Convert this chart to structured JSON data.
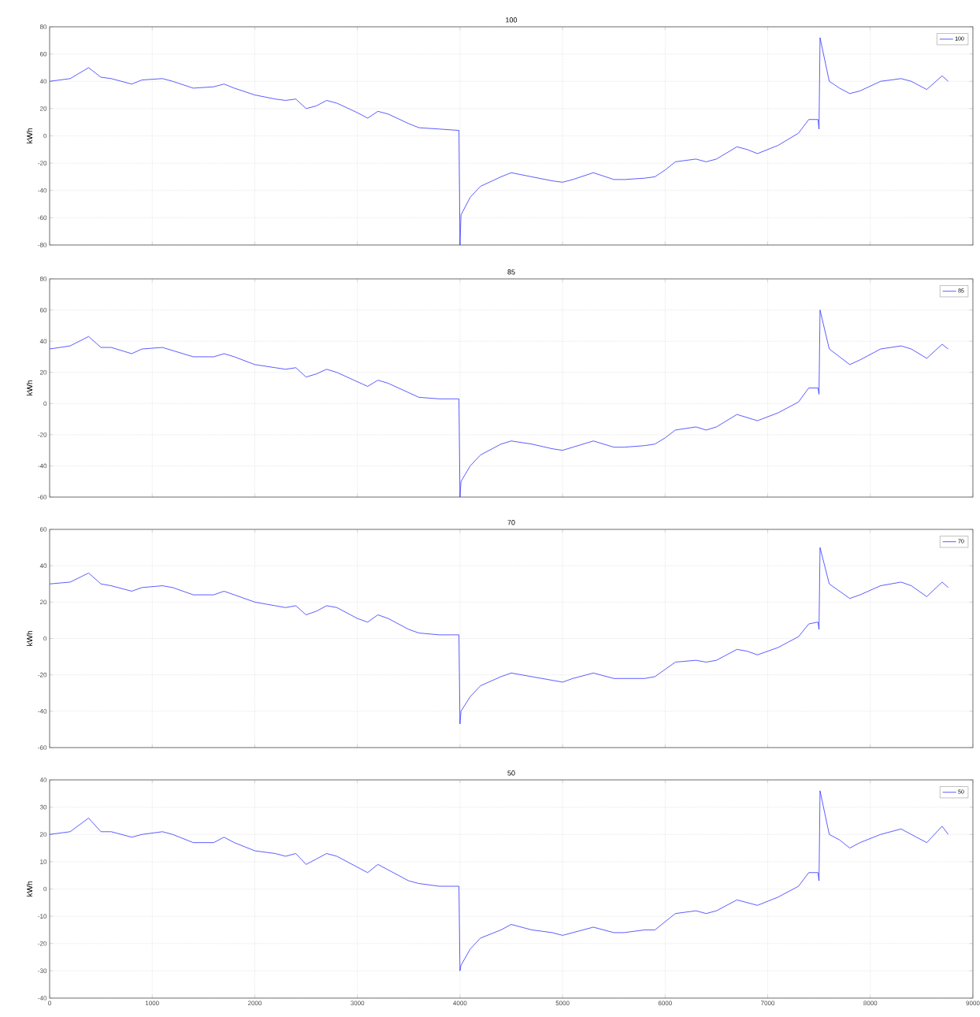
{
  "chart_data": [
    {
      "type": "line",
      "title": "100",
      "ylabel": "kWh",
      "x": [
        0,
        200,
        380,
        500,
        600,
        800,
        900,
        1100,
        1200,
        1400,
        1600,
        1700,
        1800,
        2000,
        2200,
        2300,
        2400,
        2500,
        2600,
        2700,
        2800,
        3000,
        3100,
        3200,
        3300,
        3500,
        3600,
        3800,
        3990,
        4000,
        4010,
        4100,
        4200,
        4400,
        4500,
        4700,
        4900,
        5000,
        5100,
        5300,
        5500,
        5600,
        5800,
        5900,
        6000,
        6100,
        6300,
        6400,
        6500,
        6700,
        6800,
        6900,
        7100,
        7300,
        7400,
        7490,
        7500,
        7510,
        7600,
        7700,
        7800,
        7900,
        8100,
        8300,
        8400,
        8550,
        8700,
        8760
      ],
      "series": [
        {
          "name": "100",
          "color": "#3333ff",
          "values": [
            40,
            42,
            50,
            43,
            42,
            38,
            41,
            42,
            40,
            35,
            36,
            38,
            35,
            30,
            27,
            26,
            27,
            20,
            22,
            26,
            24,
            17,
            13,
            18,
            16,
            9,
            6,
            5,
            4,
            -80,
            -58,
            -45,
            -37,
            -30,
            -27,
            -30,
            -33,
            -34,
            -32,
            -27,
            -32,
            -32,
            -31,
            -30,
            -25,
            -19,
            -17,
            -19,
            -17,
            -8,
            -10,
            -13,
            -7,
            2,
            12,
            12,
            5,
            72,
            40,
            35,
            31,
            33,
            40,
            42,
            40,
            34,
            44,
            40
          ]
        }
      ],
      "xlim": [
        0,
        9000
      ],
      "xticks": [
        0,
        1000,
        2000,
        3000,
        4000,
        5000,
        6000,
        7000,
        8000,
        9000
      ],
      "ylim": [
        -80,
        80
      ],
      "yticks": [
        -80,
        -60,
        -40,
        -20,
        0,
        20,
        40,
        60,
        80
      ],
      "grid": true,
      "legend": "top right",
      "tick_labels": "y"
    },
    {
      "type": "line",
      "title": "85",
      "ylabel": "kWh",
      "x": [
        0,
        200,
        380,
        500,
        600,
        800,
        900,
        1100,
        1200,
        1400,
        1600,
        1700,
        1800,
        2000,
        2200,
        2300,
        2400,
        2500,
        2600,
        2700,
        2800,
        3000,
        3100,
        3200,
        3300,
        3500,
        3600,
        3800,
        3990,
        4000,
        4010,
        4100,
        4200,
        4400,
        4500,
        4700,
        4900,
        5000,
        5100,
        5300,
        5500,
        5600,
        5800,
        5900,
        6000,
        6100,
        6300,
        6400,
        6500,
        6700,
        6800,
        6900,
        7100,
        7300,
        7400,
        7490,
        7500,
        7510,
        7600,
        7700,
        7800,
        7900,
        8100,
        8300,
        8400,
        8550,
        8700,
        8760
      ],
      "series": [
        {
          "name": "85",
          "color": "#3333ff",
          "values": [
            35,
            37,
            43,
            36,
            36,
            32,
            35,
            36,
            34,
            30,
            30,
            32,
            30,
            25,
            23,
            22,
            23,
            17,
            19,
            22,
            20,
            14,
            11,
            15,
            13,
            7,
            4,
            3,
            3,
            -60,
            -50,
            -40,
            -33,
            -26,
            -24,
            -26,
            -29,
            -30,
            -28,
            -24,
            -28,
            -28,
            -27,
            -26,
            -22,
            -17,
            -15,
            -17,
            -15,
            -7,
            -9,
            -11,
            -6,
            1,
            10,
            10,
            6,
            60,
            35,
            30,
            25,
            28,
            35,
            37,
            35,
            29,
            38,
            35
          ]
        }
      ],
      "xlim": [
        0,
        9000
      ],
      "xticks": [
        0,
        1000,
        2000,
        3000,
        4000,
        5000,
        6000,
        7000,
        8000,
        9000
      ],
      "ylim": [
        -60,
        80
      ],
      "yticks": [
        -60,
        -40,
        -20,
        0,
        20,
        40,
        60,
        80
      ],
      "grid": true,
      "legend": "top right",
      "tick_labels": "y"
    },
    {
      "type": "line",
      "title": "70",
      "ylabel": "kWh",
      "x": [
        0,
        200,
        380,
        500,
        600,
        800,
        900,
        1100,
        1200,
        1400,
        1600,
        1700,
        1800,
        2000,
        2200,
        2300,
        2400,
        2500,
        2600,
        2700,
        2800,
        3000,
        3100,
        3200,
        3300,
        3500,
        3600,
        3800,
        3990,
        4000,
        4010,
        4100,
        4200,
        4400,
        4500,
        4700,
        4900,
        5000,
        5100,
        5300,
        5500,
        5600,
        5800,
        5900,
        6000,
        6100,
        6300,
        6400,
        6500,
        6700,
        6800,
        6900,
        7100,
        7300,
        7400,
        7490,
        7500,
        7510,
        7600,
        7700,
        7800,
        7900,
        8100,
        8300,
        8400,
        8550,
        8700,
        8760
      ],
      "series": [
        {
          "name": "70",
          "color": "#3333ff",
          "values": [
            30,
            31,
            36,
            30,
            29,
            26,
            28,
            29,
            28,
            24,
            24,
            26,
            24,
            20,
            18,
            17,
            18,
            13,
            15,
            18,
            17,
            11,
            9,
            13,
            11,
            5,
            3,
            2,
            2,
            -47,
            -40,
            -32,
            -26,
            -21,
            -19,
            -21,
            -23,
            -24,
            -22,
            -19,
            -22,
            -22,
            -22,
            -21,
            -17,
            -13,
            -12,
            -13,
            -12,
            -6,
            -7,
            -9,
            -5,
            1,
            8,
            9,
            5,
            50,
            30,
            26,
            22,
            24,
            29,
            31,
            29,
            23,
            31,
            28
          ]
        }
      ],
      "xlim": [
        0,
        9000
      ],
      "xticks": [
        0,
        1000,
        2000,
        3000,
        4000,
        5000,
        6000,
        7000,
        8000,
        9000
      ],
      "ylim": [
        -60,
        60
      ],
      "yticks": [
        -60,
        -40,
        -20,
        0,
        20,
        40,
        60
      ],
      "grid": true,
      "legend": "top right",
      "tick_labels": "y"
    },
    {
      "type": "line",
      "title": "50",
      "ylabel": "kWh",
      "x": [
        0,
        200,
        380,
        500,
        600,
        800,
        900,
        1100,
        1200,
        1400,
        1600,
        1700,
        1800,
        2000,
        2200,
        2300,
        2400,
        2500,
        2600,
        2700,
        2800,
        3000,
        3100,
        3200,
        3300,
        3500,
        3600,
        3800,
        3990,
        4000,
        4010,
        4100,
        4200,
        4400,
        4500,
        4700,
        4900,
        5000,
        5100,
        5300,
        5500,
        5600,
        5800,
        5900,
        6000,
        6100,
        6300,
        6400,
        6500,
        6700,
        6800,
        6900,
        7100,
        7300,
        7400,
        7490,
        7500,
        7510,
        7600,
        7700,
        7800,
        7900,
        8100,
        8300,
        8400,
        8550,
        8700,
        8760
      ],
      "series": [
        {
          "name": "50",
          "color": "#3333ff",
          "values": [
            20,
            21,
            26,
            21,
            21,
            19,
            20,
            21,
            20,
            17,
            17,
            19,
            17,
            14,
            13,
            12,
            13,
            9,
            11,
            13,
            12,
            8,
            6,
            9,
            7,
            3,
            2,
            1,
            1,
            -30,
            -28,
            -22,
            -18,
            -15,
            -13,
            -15,
            -16,
            -17,
            -16,
            -14,
            -16,
            -16,
            -15,
            -15,
            -12,
            -9,
            -8,
            -9,
            -8,
            -4,
            -5,
            -6,
            -3,
            1,
            6,
            6,
            3,
            36,
            20,
            18,
            15,
            17,
            20,
            22,
            20,
            17,
            23,
            20
          ]
        }
      ],
      "xlim": [
        0,
        9000
      ],
      "xticks": [
        0,
        1000,
        2000,
        3000,
        4000,
        5000,
        6000,
        7000,
        8000,
        9000
      ],
      "ylim": [
        -40,
        40
      ],
      "yticks": [
        -40,
        -30,
        -20,
        -10,
        0,
        10,
        20,
        30,
        40
      ],
      "grid": true,
      "legend": "top right"
    }
  ]
}
